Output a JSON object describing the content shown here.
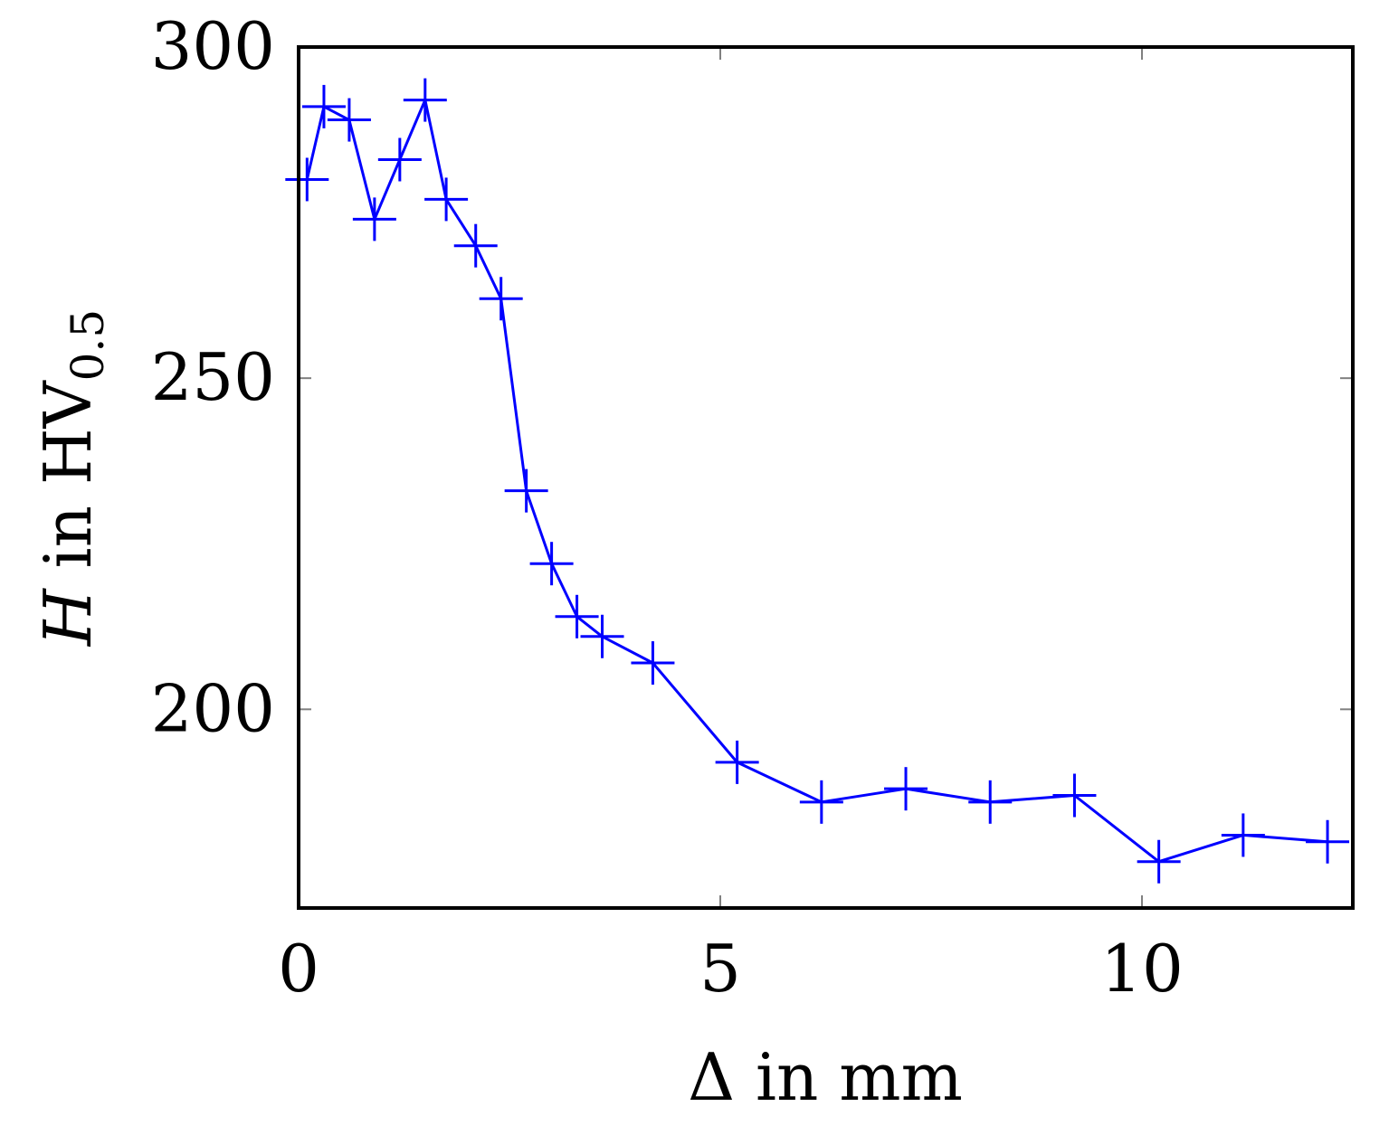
{
  "chart_data": {
    "type": "line",
    "xlabel": "Δ in mm",
    "ylabel": {
      "prefix": "H",
      "middle": " in HV",
      "subscript": "0.5"
    },
    "xlim": [
      0,
      12.5
    ],
    "ylim": [
      170,
      300
    ],
    "xticks": [
      0,
      5,
      10
    ],
    "yticks": [
      200,
      250,
      300
    ],
    "grid": false,
    "legend": "none",
    "colors": {
      "series": "#0000ff",
      "axes": "#000000",
      "ticks": "#808080"
    },
    "series": [
      {
        "marker": "plus",
        "x": [
          0.1,
          0.3,
          0.6,
          0.9,
          1.2,
          1.5,
          1.75,
          2.1,
          2.4,
          2.7,
          3.0,
          3.3,
          3.6,
          4.2,
          5.2,
          6.2,
          7.2,
          8.2,
          9.2,
          10.2,
          11.2,
          12.2
        ],
        "y": [
          280,
          291,
          289,
          274,
          283,
          292,
          277,
          270,
          262,
          233,
          222,
          214,
          211,
          207,
          192,
          186,
          188,
          186,
          187,
          177,
          181,
          180
        ]
      }
    ]
  }
}
